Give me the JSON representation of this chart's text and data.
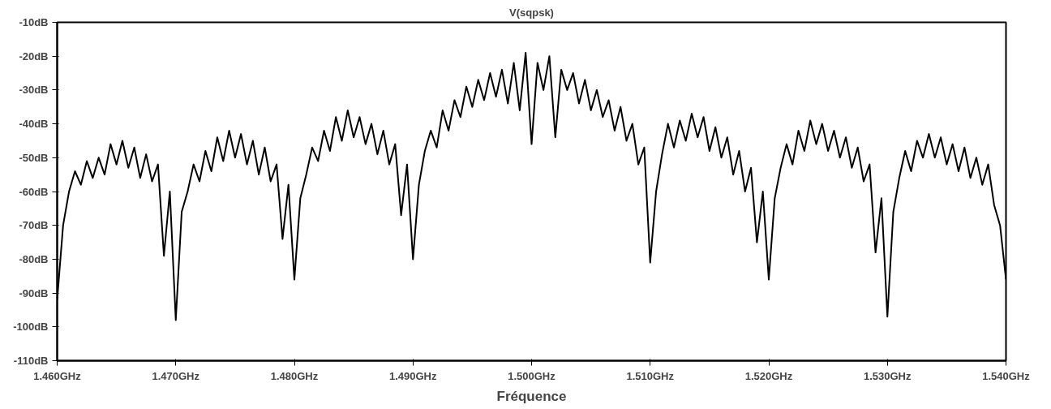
{
  "chart_data": {
    "type": "line",
    "title": "V(sqpsk)",
    "xlabel": "Fréquence",
    "x": [
      1.46,
      1.4605,
      1.461,
      1.4615,
      1.462,
      1.4625,
      1.463,
      1.4635,
      1.464,
      1.4645,
      1.465,
      1.4655,
      1.466,
      1.4665,
      1.467,
      1.4675,
      1.468,
      1.4685,
      1.469,
      1.4695,
      1.47,
      1.4705,
      1.471,
      1.4715,
      1.472,
      1.4725,
      1.473,
      1.4735,
      1.474,
      1.4745,
      1.475,
      1.4755,
      1.476,
      1.4765,
      1.477,
      1.4775,
      1.478,
      1.4785,
      1.479,
      1.4795,
      1.48,
      1.4805,
      1.481,
      1.4815,
      1.482,
      1.4825,
      1.483,
      1.4835,
      1.484,
      1.4845,
      1.485,
      1.4855,
      1.486,
      1.4865,
      1.487,
      1.4875,
      1.488,
      1.4885,
      1.489,
      1.4895,
      1.49,
      1.4905,
      1.491,
      1.4915,
      1.492,
      1.4925,
      1.493,
      1.4935,
      1.494,
      1.4945,
      1.495,
      1.4955,
      1.496,
      1.4965,
      1.497,
      1.4975,
      1.498,
      1.4985,
      1.499,
      1.4995,
      1.5,
      1.5005,
      1.501,
      1.5015,
      1.502,
      1.5025,
      1.503,
      1.5035,
      1.504,
      1.5045,
      1.505,
      1.5055,
      1.506,
      1.5065,
      1.507,
      1.5075,
      1.508,
      1.5085,
      1.509,
      1.5095,
      1.51,
      1.5105,
      1.511,
      1.5115,
      1.512,
      1.5125,
      1.513,
      1.5135,
      1.514,
      1.5145,
      1.515,
      1.5155,
      1.516,
      1.5165,
      1.517,
      1.5175,
      1.518,
      1.5185,
      1.519,
      1.5195,
      1.52,
      1.5205,
      1.521,
      1.5215,
      1.522,
      1.5225,
      1.523,
      1.5235,
      1.524,
      1.5245,
      1.525,
      1.5255,
      1.526,
      1.5265,
      1.527,
      1.5275,
      1.528,
      1.5285,
      1.529,
      1.5295,
      1.53,
      1.5305,
      1.531,
      1.5315,
      1.532,
      1.5325,
      1.533,
      1.5335,
      1.534,
      1.5345,
      1.535,
      1.5355,
      1.536,
      1.5365,
      1.537,
      1.5375,
      1.538,
      1.5385,
      1.539,
      1.5395,
      1.54
    ],
    "series": [
      {
        "color": "#000000",
        "values": [
          -92,
          -70,
          -60,
          -54,
          -58,
          -51,
          -56,
          -50,
          -55,
          -46,
          -52,
          -45,
          -53,
          -47,
          -56,
          -49,
          -57,
          -52,
          -79,
          -60,
          -98,
          -66,
          -60,
          -52,
          -57,
          -48,
          -54,
          -44,
          -51,
          -42,
          -50,
          -43,
          -52,
          -45,
          -55,
          -47,
          -57,
          -52,
          -74,
          -58,
          -86,
          -62,
          -55,
          -47,
          -51,
          -42,
          -48,
          -38,
          -45,
          -36,
          -44,
          -38,
          -46,
          -40,
          -49,
          -42,
          -52,
          -46,
          -67,
          -52,
          -80,
          -58,
          -48,
          -42,
          -47,
          -36,
          -42,
          -33,
          -38,
          -29,
          -35,
          -27,
          -33,
          -25,
          -32,
          -24,
          -34,
          -22,
          -36,
          -19,
          -46,
          -22,
          -30,
          -20,
          -44,
          -24,
          -30,
          -25,
          -34,
          -27,
          -36,
          -30,
          -38,
          -33,
          -42,
          -35,
          -45,
          -40,
          -52,
          -47,
          -81,
          -60,
          -49,
          -40,
          -47,
          -39,
          -45,
          -37,
          -44,
          -38,
          -48,
          -41,
          -50,
          -44,
          -55,
          -48,
          -60,
          -53,
          -75,
          -60,
          -86,
          -62,
          -53,
          -46,
          -52,
          -42,
          -48,
          -39,
          -46,
          -40,
          -48,
          -42,
          -50,
          -44,
          -53,
          -47,
          -57,
          -52,
          -78,
          -62,
          -97,
          -66,
          -56,
          -48,
          -54,
          -45,
          -50,
          -43,
          -50,
          -44,
          -52,
          -46,
          -54,
          -47,
          -56,
          -50,
          -58,
          -52,
          -64,
          -70,
          -86
        ]
      }
    ],
    "xlim": [
      1.46,
      1.54
    ],
    "xticks": [
      {
        "value": 1.46,
        "label": "1.460GHz"
      },
      {
        "value": 1.47,
        "label": "1.470GHz"
      },
      {
        "value": 1.48,
        "label": "1.480GHz"
      },
      {
        "value": 1.49,
        "label": "1.490GHz"
      },
      {
        "value": 1.5,
        "label": "1.500GHz"
      },
      {
        "value": 1.51,
        "label": "1.510GHz"
      },
      {
        "value": 1.52,
        "label": "1.520GHz"
      },
      {
        "value": 1.53,
        "label": "1.530GHz"
      },
      {
        "value": 1.54,
        "label": "1.540GHz"
      }
    ],
    "ylim": [
      -110,
      -10
    ],
    "yticks": [
      {
        "value": -110,
        "label": "-110dB"
      },
      {
        "value": -100,
        "label": "-100dB"
      },
      {
        "value": -90,
        "label": "-90dB"
      },
      {
        "value": -80,
        "label": "-80dB"
      },
      {
        "value": -70,
        "label": "-70dB"
      },
      {
        "value": -60,
        "label": "-60dB"
      },
      {
        "value": -50,
        "label": "-50dB"
      },
      {
        "value": -40,
        "label": "-40dB"
      },
      {
        "value": -30,
        "label": "-30dB"
      },
      {
        "value": -20,
        "label": "-20dB"
      },
      {
        "value": -10,
        "label": "-10dB"
      }
    ],
    "grid": false
  }
}
